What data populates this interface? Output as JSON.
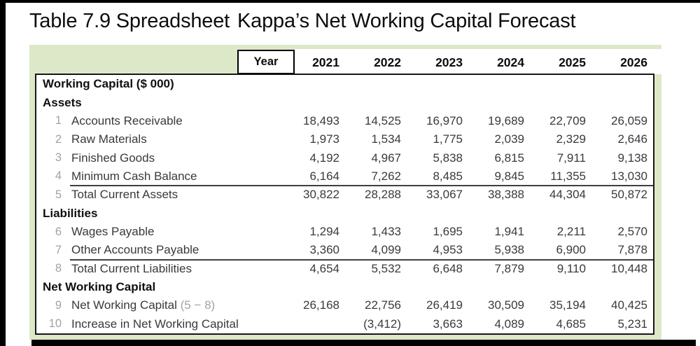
{
  "title": {
    "prefix": "Table 7.9 Spreadsheet",
    "rest": "Kappa’s Net Working Capital Forecast"
  },
  "header": {
    "year_label": "Year",
    "years": [
      "2021",
      "2022",
      "2023",
      "2024",
      "2025",
      "2026"
    ]
  },
  "table": {
    "rows": [
      {
        "type": "section",
        "label": "Working Capital ($ 000)"
      },
      {
        "type": "section",
        "label": "Assets"
      },
      {
        "type": "item",
        "num": "1",
        "label": "Accounts Receivable",
        "values": [
          "18,493",
          "14,525",
          "16,970",
          "19,689",
          "22,709",
          "26,059"
        ]
      },
      {
        "type": "item",
        "num": "2",
        "label": "Raw Materials",
        "values": [
          "1,973",
          "1,534",
          "1,775",
          "2,039",
          "2,329",
          "2,646"
        ]
      },
      {
        "type": "item",
        "num": "3",
        "label": "Finished Goods",
        "values": [
          "4,192",
          "4,967",
          "5,838",
          "6,815",
          "7,911",
          "9,138"
        ]
      },
      {
        "type": "item",
        "num": "4",
        "label": "Minimum Cash Balance",
        "values": [
          "6,164",
          "7,262",
          "8,485",
          "9,845",
          "11,355",
          "13,030"
        ]
      },
      {
        "type": "item",
        "num": "5",
        "label": "Total Current Assets",
        "topline": true,
        "values": [
          "30,822",
          "28,288",
          "33,067",
          "38,388",
          "44,304",
          "50,872"
        ]
      },
      {
        "type": "section",
        "label": "Liabilities"
      },
      {
        "type": "item",
        "num": "6",
        "label": "Wages Payable",
        "values": [
          "1,294",
          "1,433",
          "1,695",
          "1,941",
          "2,211",
          "2,570"
        ]
      },
      {
        "type": "item",
        "num": "7",
        "label": "Other Accounts Payable",
        "values": [
          "3,360",
          "4,099",
          "4,953",
          "5,938",
          "6,900",
          "7,878"
        ]
      },
      {
        "type": "item",
        "num": "8",
        "label": "Total Current Liabilities",
        "topline": true,
        "values": [
          "4,654",
          "5,532",
          "6,648",
          "7,879",
          "9,110",
          "10,448"
        ]
      },
      {
        "type": "section",
        "label": "Net Working Capital"
      },
      {
        "type": "item",
        "num": "9",
        "label": "Net Working Capital",
        "label_suffix": "(5 − 8)",
        "values": [
          "26,168",
          "22,756",
          "26,419",
          "30,509",
          "35,194",
          "40,425"
        ]
      },
      {
        "type": "item",
        "num": "10",
        "label": "Increase in Net Working Capital",
        "values": [
          "",
          "(3,412)",
          "3,663",
          "4,089",
          "4,685",
          "5,231"
        ]
      }
    ]
  },
  "colors": {
    "panel_green": "#dde8c9",
    "frame_black": "#000000",
    "text_dark": "#3a3a3a",
    "row_number_gray": "#a3a3a3"
  }
}
